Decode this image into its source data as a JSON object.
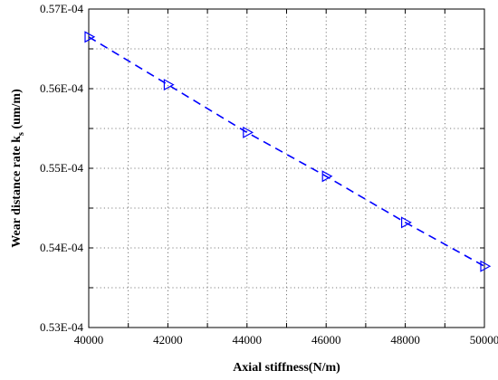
{
  "chart_data": {
    "type": "line",
    "title": "",
    "xlabel": "Axial stiffness(N/m)",
    "ylabel": "Wear distance rate k",
    "ylabel_sub": "s",
    "ylabel_unit": " (um/m)",
    "xlim": [
      40000,
      50000
    ],
    "ylim": [
      5.3e-05,
      5.7e-05
    ],
    "x_ticks": [
      40000,
      41000,
      42000,
      43000,
      44000,
      45000,
      46000,
      47000,
      48000,
      49000,
      50000
    ],
    "x_tick_labels": [
      "40000",
      "",
      "42000",
      "",
      "44000",
      "",
      "46000",
      "",
      "48000",
      "",
      "50000"
    ],
    "y_ticks": [
      5.3e-05,
      5.35e-05,
      5.4e-05,
      5.45e-05,
      5.5e-05,
      5.55e-05,
      5.6e-05,
      5.65e-05,
      5.7e-05
    ],
    "y_tick_labels": [
      "0.53E-04",
      "",
      "0.54E-04",
      "",
      "0.55E-04",
      "",
      "0.56E-04",
      "",
      "0.57E-04"
    ],
    "grid": true,
    "grid_style": "dotted",
    "series": [
      {
        "color": "#0000ff",
        "line_style": "dashed",
        "marker": "triangle-right",
        "x": [
          40000,
          42000,
          44000,
          46000,
          48000,
          50000
        ],
        "y": [
          5.665e-05,
          5.605e-05,
          5.545e-05,
          5.49e-05,
          5.432e-05,
          5.377e-05
        ]
      }
    ]
  }
}
